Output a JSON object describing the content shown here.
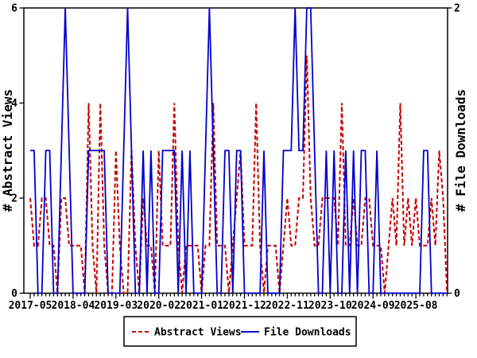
{
  "chart_data": {
    "type": "line",
    "title": "",
    "x_tick_labels": [
      "2017-05",
      "2018-04",
      "2019-03",
      "2020-02",
      "2021-01",
      "2021-12",
      "2022-11",
      "2023-10",
      "2024-09",
      "2025-08"
    ],
    "x_tick_month_indexes": [
      0,
      11,
      22,
      33,
      44,
      55,
      66,
      77,
      88,
      99
    ],
    "x_range": {
      "start_month": "2017-05",
      "last_labeled_month": "2025-08",
      "months_drawn": 108
    },
    "left_axis": {
      "label": "# Abstract Views",
      "range": [
        0,
        6
      ],
      "ticks": [
        0,
        2,
        4,
        6
      ]
    },
    "right_axis": {
      "label": "# File Downloads",
      "range": [
        0,
        2
      ],
      "ticks": [
        0,
        2
      ]
    },
    "grid": false,
    "legend_position": "bottom-center",
    "series": [
      {
        "name": "Abstract Views",
        "axis": "left",
        "style": "dashed",
        "color": "#c80000",
        "values": [
          2,
          1,
          1,
          2,
          2,
          1,
          1,
          0,
          2,
          2,
          1,
          1,
          1,
          1,
          0,
          4,
          1,
          0,
          4,
          1,
          0,
          0,
          3,
          1,
          0,
          0,
          3,
          1,
          0,
          2,
          1,
          1,
          0,
          3,
          1,
          1,
          1,
          4,
          1,
          0,
          1,
          1,
          1,
          1,
          0,
          1,
          1,
          4,
          1,
          1,
          1,
          0,
          1,
          2,
          3,
          1,
          1,
          1,
          4,
          1,
          0,
          1,
          1,
          1,
          0,
          1,
          2,
          1,
          1,
          2,
          2,
          5,
          2,
          1,
          1,
          2,
          2,
          2,
          2,
          1,
          4,
          1,
          1,
          2,
          1,
          1,
          2,
          2,
          1,
          1,
          1,
          0,
          1,
          2,
          1,
          4,
          1,
          2,
          1,
          2,
          1,
          1,
          1,
          2,
          1,
          3,
          2,
          0
        ]
      },
      {
        "name": "File Downloads",
        "axis": "right",
        "style": "solid",
        "color": "#0000cd",
        "values": [
          1,
          1,
          0,
          0,
          1,
          1,
          0,
          0,
          1,
          2,
          1,
          0,
          0,
          0,
          0,
          1,
          1,
          1,
          1,
          1,
          0,
          0,
          0,
          0,
          1,
          2,
          1,
          0,
          0,
          1,
          0,
          1,
          0,
          0,
          1,
          1,
          1,
          1,
          0,
          1,
          0,
          1,
          0,
          0,
          0,
          1,
          2,
          1,
          0,
          0,
          1,
          1,
          0,
          1,
          1,
          0,
          0,
          0,
          0,
          0,
          1,
          0,
          0,
          0,
          0,
          1,
          1,
          1,
          2,
          1,
          1,
          2,
          2,
          1,
          0,
          0,
          1,
          0,
          1,
          0,
          0,
          1,
          0,
          1,
          0,
          1,
          1,
          0,
          0,
          1,
          0,
          0,
          0,
          0,
          0,
          0,
          0,
          0,
          0,
          0,
          0,
          1,
          1,
          0,
          0,
          0,
          0,
          0
        ]
      }
    ],
    "legend": {
      "entries": [
        {
          "label": "Abstract Views",
          "color": "#c80000",
          "style": "dashed"
        },
        {
          "label": "File Downloads",
          "color": "#0000cd",
          "style": "solid"
        }
      ]
    },
    "colors": {
      "border": "#000000",
      "text": "#000000",
      "background": "#ffffff"
    }
  }
}
